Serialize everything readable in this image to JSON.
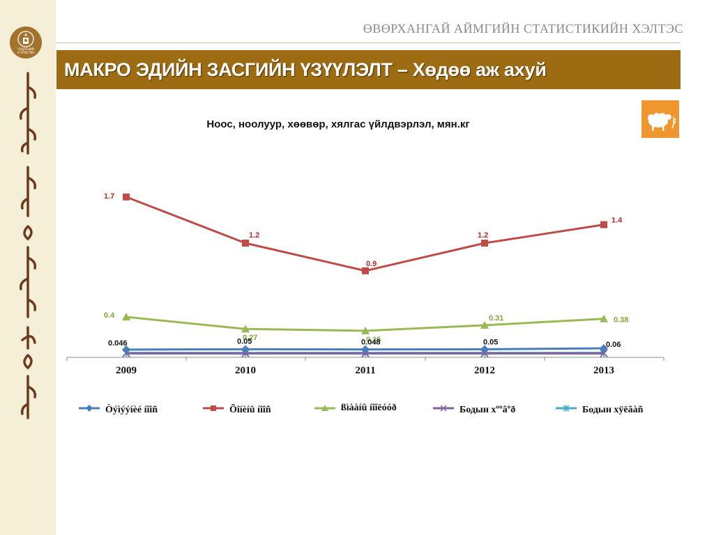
{
  "header": {
    "org_title": "ӨВӨРХАНГАЙ АЙМГИЙН СТАТИСТИКИЙН ХЭЛТЭС",
    "banner_title": "МАКРО ЭДИЙН ЗАСГИЙН ҮЗҮҮЛЭЛТ – Хөдөө аж ахуй",
    "emblem_text_1": "ҮНДЭСНИЙ",
    "emblem_text_2": "СТАТИСТИК"
  },
  "icons": {
    "logo": "state-emblem-icon",
    "sector": "sheep-icon"
  },
  "colors": {
    "banner": "#9d6b12",
    "sidebar": "#f4efd6",
    "icon_bg": "#f0962e"
  },
  "chart_data": {
    "type": "line",
    "title": "Ноос, ноолуур, хөөвөр, хялгас үйлдвэрлэл, мян.кг",
    "categories": [
      "2009",
      "2010",
      "2011",
      "2012",
      "2013"
    ],
    "ylim": [
      0,
      2.0
    ],
    "grid": false,
    "legend_position": "bottom",
    "series": [
      {
        "name": "Òýìýýíèé íîîñ",
        "color": "#4a7ebb",
        "marker": "diamond",
        "values": [
          0.046,
          0.05,
          0.048,
          0.05,
          0.06
        ],
        "labels": [
          "0.046",
          "0.05",
          "0.048",
          "0.05",
          "0.06"
        ]
      },
      {
        "name": "Õîíèíû íîîñ",
        "color": "#be4b48",
        "marker": "square",
        "values": [
          1.7,
          1.2,
          0.9,
          1.2,
          1.4
        ],
        "labels": [
          "1.7",
          "1.2",
          "0.9",
          "1.2",
          "1.4"
        ]
      },
      {
        "name": "ßìààíû íîîëóóð",
        "color": "#98b954",
        "marker": "triangle",
        "values": [
          0.4,
          0.27,
          0.25,
          0.31,
          0.38
        ],
        "labels": [
          "0.4",
          "0.27",
          "0.25",
          "0.31",
          "0.38"
        ]
      },
      {
        "name": "Бодын хººâºð",
        "color": "#7d60a0",
        "marker": "x",
        "values": [
          0.005,
          0.005,
          0.005,
          0.005,
          0.005
        ]
      },
      {
        "name": "Бодын хÿëãàñ",
        "color": "#46aac5",
        "marker": "star",
        "values": [
          0.01,
          0.01,
          0.01,
          0.01,
          0.01
        ]
      }
    ]
  }
}
